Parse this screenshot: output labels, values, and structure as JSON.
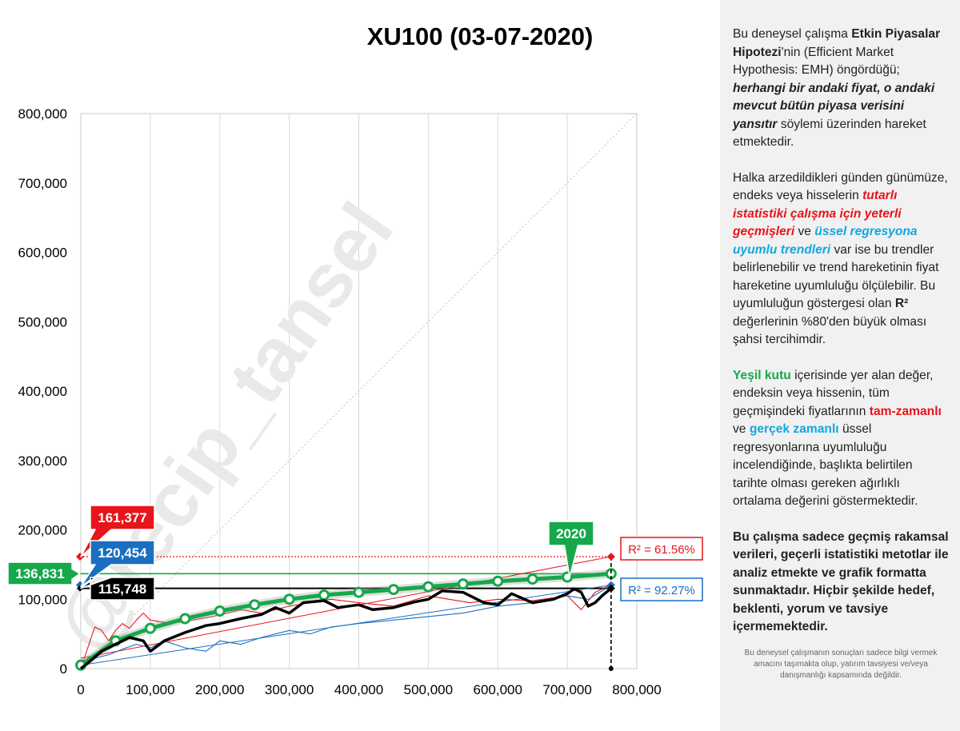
{
  "chart_data": {
    "type": "line",
    "title": "XU100 (03-07-2020)",
    "xlim": [
      0,
      800000
    ],
    "ylim": [
      0,
      800000
    ],
    "x_ticks": [
      "0",
      "100,000",
      "200,000",
      "300,000",
      "400,000",
      "500,000",
      "600,000",
      "700,000",
      "800,000"
    ],
    "y_ticks": [
      "0",
      "100,000",
      "200,000",
      "300,000",
      "400,000",
      "500,000",
      "600,000",
      "700,000",
      "800,000"
    ],
    "grid": "vertical",
    "series": [
      {
        "name": "",
        "color": "#000000",
        "x": [
          0,
          10000,
          30000,
          50000,
          70000,
          90000,
          100000,
          120000,
          150000,
          180000,
          200000,
          230000,
          260000,
          280000,
          300000,
          320000,
          350000,
          370000,
          400000,
          420000,
          450000,
          480000,
          500000,
          520000,
          550000,
          580000,
          600000,
          620000,
          650000,
          680000,
          700000,
          710000,
          720000,
          730000,
          740000,
          750000,
          763000
        ],
        "y": [
          0,
          8000,
          25000,
          35000,
          45000,
          40000,
          25000,
          40000,
          52000,
          62000,
          65000,
          72000,
          78000,
          88000,
          80000,
          95000,
          98000,
          88000,
          92000,
          85000,
          88000,
          96000,
          100000,
          112000,
          110000,
          95000,
          92000,
          108000,
          95000,
          100000,
          108000,
          115000,
          110000,
          90000,
          95000,
          105000,
          115748
        ]
      },
      {
        "name": "",
        "color": "#e8141b",
        "x": [
          0,
          10000,
          20000,
          30000,
          40000,
          50000,
          60000,
          70000,
          80000,
          90000,
          100000,
          130000,
          160000,
          190000,
          230000,
          260000,
          300000,
          330000,
          360000,
          400000,
          450000,
          500000,
          530000,
          560000,
          600000,
          650000,
          700000,
          720000,
          740000,
          763000
        ],
        "y": [
          0,
          30000,
          60000,
          55000,
          40000,
          55000,
          65000,
          58000,
          70000,
          80000,
          70000,
          65000,
          70000,
          75000,
          85000,
          80000,
          90000,
          95000,
          100000,
          95000,
          90000,
          105000,
          100000,
          95000,
          100000,
          98000,
          105000,
          85000,
          110000,
          121000
        ]
      },
      {
        "name": "",
        "color": "#1a6fc0",
        "x": [
          0,
          20000,
          40000,
          60000,
          80000,
          100000,
          120000,
          150000,
          180000,
          200000,
          230000,
          260000,
          300000,
          330000,
          360000,
          400000,
          450000,
          500000,
          550000,
          600000,
          650000,
          700000,
          730000,
          763000
        ],
        "y": [
          0,
          15000,
          20000,
          28000,
          35000,
          30000,
          40000,
          30000,
          25000,
          40000,
          35000,
          45000,
          55000,
          50000,
          60000,
          65000,
          70000,
          75000,
          80000,
          90000,
          95000,
          105000,
          100000,
          120000
        ]
      },
      {
        "name": "",
        "color": "#16a84a",
        "x": [
          0,
          50000,
          100000,
          150000,
          200000,
          250000,
          300000,
          350000,
          400000,
          450000,
          500000,
          550000,
          600000,
          650000,
          700000,
          763000
        ],
        "y": [
          5000,
          40000,
          58000,
          72000,
          83000,
          92000,
          100000,
          106000,
          110000,
          114000,
          118000,
          122000,
          126000,
          129000,
          132000,
          136831
        ]
      }
    ],
    "trendlines": [
      {
        "color": "#e8141b",
        "x": [
          0,
          763000
        ],
        "y": [
          15000,
          161377
        ]
      },
      {
        "color": "#1a6fc0",
        "x": [
          0,
          763000
        ],
        "y": [
          5000,
          120454
        ]
      }
    ],
    "reference_lines": [
      {
        "color": "#16a84a",
        "y": 136831
      },
      {
        "color": "#e8141b",
        "y": 161377
      },
      {
        "color": "#000000",
        "y": 115748
      }
    ],
    "callouts": [
      {
        "label": "161,377",
        "color": "#e8141b",
        "value": 161377
      },
      {
        "label": "120,454",
        "color": "#1a6fc0",
        "value": 120454
      },
      {
        "label": "136,831",
        "color": "#16a84a",
        "value": 136831
      },
      {
        "label": "115,748",
        "color": "#000000",
        "value": 115748
      },
      {
        "label": "2020",
        "color": "#16a84a",
        "value": 136831
      }
    ],
    "r2_labels": [
      {
        "text": "R² = 61.56%",
        "color": "#e8141b"
      },
      {
        "text": "R² = 92.27%",
        "color": "#1a6fc0"
      }
    ],
    "watermark": "@recip_tansel"
  },
  "side_panel": {
    "p1": [
      "Bu deneysel çalışma ",
      "Etkin Piyasalar Hipotezi",
      "'nin (Efficient Market Hypothesis: EMH) öngördüğü; ",
      "herhangi bir andaki fiyat, o andaki mevcut bütün piyasa verisini yansıtır",
      "  söylemi üzerinden hareket etmektedir."
    ],
    "p2": [
      "Halka arzedildikleri günden günümüze, endeks veya hisselerin ",
      "tutarlı istatistiki çalışma için yeterli geçmişleri",
      " ve ",
      "üssel regresyona uyumlu trendleri",
      " var ise bu trendler belirlenebilir  ve trend hareketinin fiyat hareketine uyumluluğu ölçülebilir.  Bu uyumluluğun göstergesi olan ",
      "R²",
      " değerlerinin %80'den büyük olması şahsi tercihimdir."
    ],
    "p3": [
      "Yeşil kutu",
      " içerisinde yer alan değer, endeksin veya hissenin, tüm geçmişindeki fiyatlarının ",
      "tam-zamanlı",
      " ve ",
      "gerçek zamanlı",
      " üssel regresyonlarına uyumluluğu incelendiğinde, başlıkta belirtilen tarihte olması gereken ağırlıklı ortalama değerini göstermektedir."
    ],
    "p4": "Bu çalışma sadece geçmiş rakamsal verileri, geçerli istatistiki metotlar ile  analiz etmekte ve grafik formatta sunmaktadır. Hiçbir şekilde hedef, beklenti, yorum ve tavsiye içermemektedir.",
    "disclaimer": "Bu deneysel çalışmanın sonuçları sadece bilgi vermek amacını taşımakta olup, yatırım tavsiyesi ve/veya danışmanlığı kapsamında değildir."
  }
}
